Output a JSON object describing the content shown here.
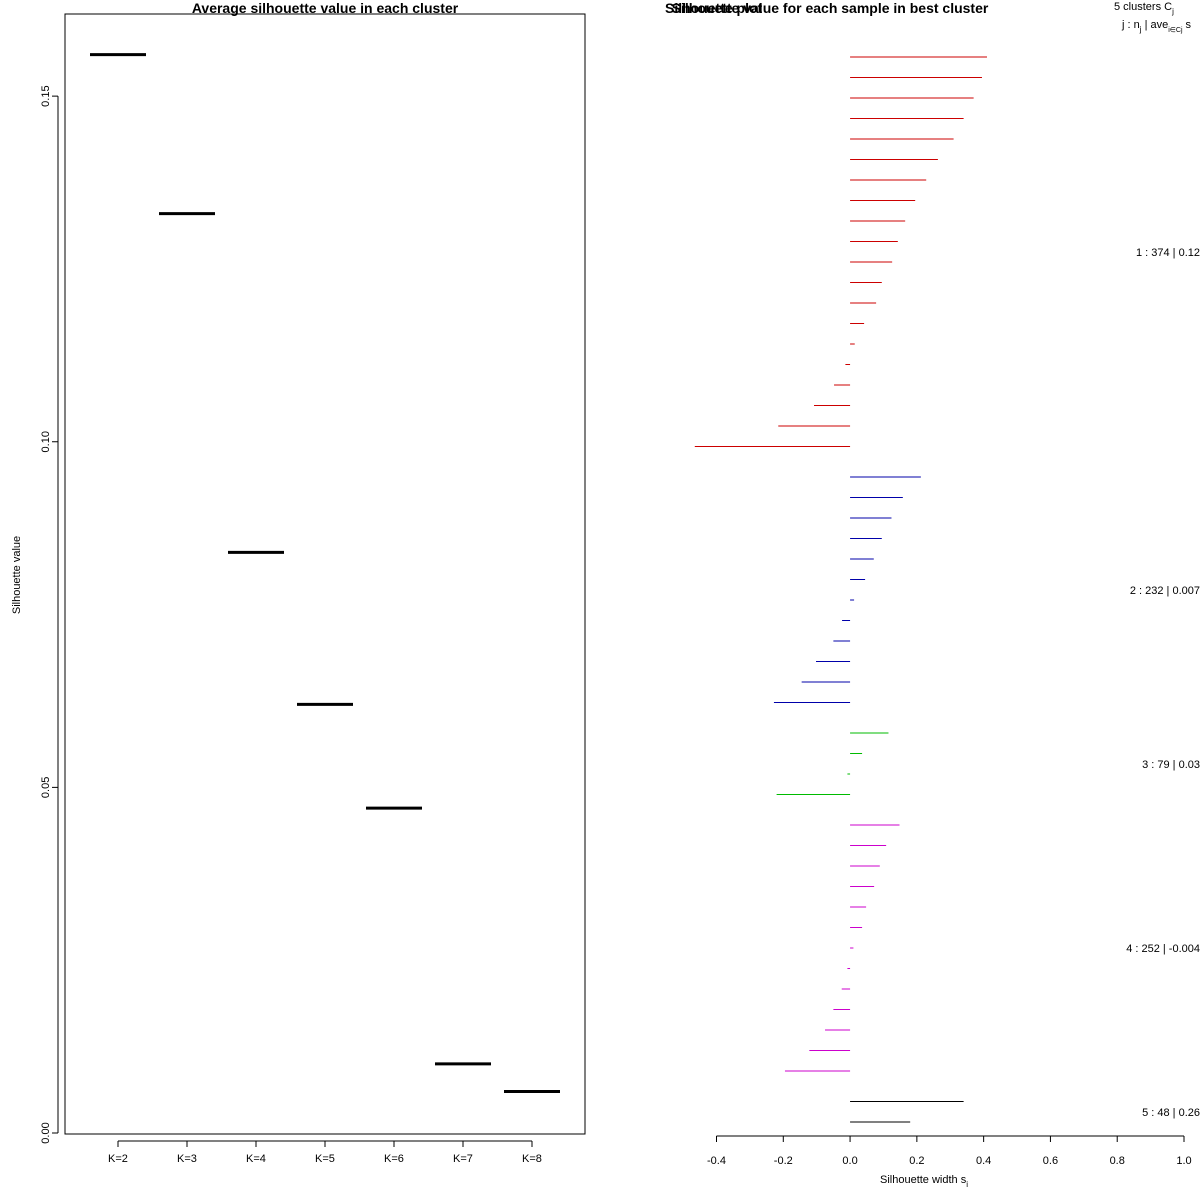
{
  "chart_data": [
    {
      "type": "scatter",
      "title": "Average silhouette value in each cluster",
      "xlabel": "",
      "ylabel": "Silhouette value",
      "ylim": [
        0,
        0.16
      ],
      "y_ticks": [
        "0.00",
        "0.05",
        "0.10",
        "0.15"
      ],
      "categories": [
        "K=2",
        "K=3",
        "K=4",
        "K=5",
        "K=6",
        "K=7",
        "K=8"
      ],
      "values": [
        0.156,
        0.133,
        0.084,
        0.062,
        0.047,
        0.01,
        0.006
      ]
    },
    {
      "type": "bar",
      "title": "Silhouette value for each sample in best cluster",
      "title_overlap": "Silhouette plot",
      "xlabel": "Silhouette width s",
      "xlabel_sub": "i",
      "xlim": [
        -0.4,
        1.0
      ],
      "x_ticks": [
        "-0.4",
        "-0.2",
        "0.0",
        "0.2",
        "0.4",
        "0.6",
        "0.8",
        "1.0"
      ],
      "header_line1": "5  clusters  C",
      "header_line1_sub": "j",
      "header_line2": "j :  n",
      "header_line2_sub": "j",
      "header_line2_b": " | ave",
      "header_line2_b_sub": "i∈Cj",
      "header_line2_c": "  s",
      "clusters": [
        {
          "label": "1 :  374  |  0.12",
          "color": "#cc0000",
          "values": [
            0.41,
            0.395,
            0.37,
            0.34,
            0.31,
            0.263,
            0.228,
            0.195,
            0.165,
            0.143,
            0.126,
            0.095,
            0.078,
            0.042,
            0.014,
            -0.014,
            -0.048,
            -0.108,
            -0.215,
            -0.465
          ]
        },
        {
          "label": "2 :  232  |  0.007",
          "color": "#0000aa",
          "values": [
            0.212,
            0.158,
            0.124,
            0.095,
            0.071,
            0.045,
            0.012,
            -0.024,
            -0.05,
            -0.102,
            -0.145,
            -0.228
          ]
        },
        {
          "label": "3 :  79  |  0.03",
          "color": "#00bb00",
          "values": [
            0.115,
            0.036,
            -0.008,
            -0.22
          ]
        },
        {
          "label": "4 :  252  |  -0.004",
          "color": "#cc00cc",
          "values": [
            0.148,
            0.108,
            0.089,
            0.072,
            0.048,
            0.036,
            0.01,
            -0.008,
            -0.025,
            -0.05,
            -0.075,
            -0.122,
            -0.195
          ]
        },
        {
          "label": "5 :  48  |  0.26",
          "color": "#000000",
          "values": [
            0.34,
            0.18
          ]
        }
      ]
    }
  ]
}
